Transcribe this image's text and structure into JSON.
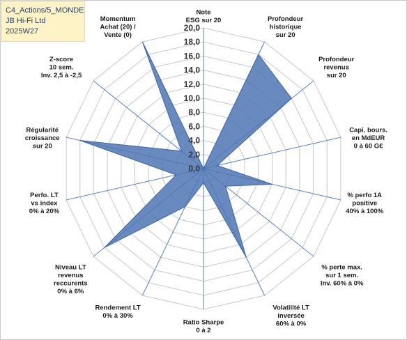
{
  "title_box": {
    "line1": "C4_Actions/5_MONDE",
    "line2": "JB Hi-Fi Ltd",
    "line3": "2025W27"
  },
  "chart_data": {
    "type": "radar",
    "categories": [
      [
        "Note",
        "ESG sur 20"
      ],
      [
        "Profondeur",
        "historique",
        "sur 20"
      ],
      [
        "Profondeur",
        "revenus",
        "sur 20"
      ],
      [
        "Capi. bours.",
        "en MdEUR",
        "0 à 60 G€"
      ],
      [
        "% perfo 1A",
        "positive",
        "40% à 100%"
      ],
      [
        "% perte max.",
        "sur 1 sem.",
        "Inv. 60% à 0%"
      ],
      [
        "Volatilité LT",
        "inversée",
        "60% à 0%"
      ],
      [
        "Ratio Sharpe",
        "0 à 2"
      ],
      [
        "Rendement LT",
        "0% à 30%"
      ],
      [
        "Niveau LT",
        "revenus",
        "reccurents",
        "0% à 6%"
      ],
      [
        "Perfo. LT",
        "vs index",
        "0% à 20%"
      ],
      [
        "Régularité",
        "croissance",
        "sur 20"
      ],
      [
        "Z-score",
        "10 sem.",
        "Inv. 2,5 à -2,5"
      ],
      [
        "Momentum",
        "Achat (20) /",
        "Vente (0)"
      ]
    ],
    "values": [
      0,
      18,
      16,
      2,
      10,
      4,
      14,
      2,
      6,
      18,
      4,
      18,
      4,
      20
    ],
    "ticks": [
      "0,0",
      "2,0",
      "4,0",
      "6,0",
      "8,0",
      "10,0",
      "12,0",
      "14,0",
      "16,0",
      "18,0",
      "20,0"
    ],
    "rlim": [
      0,
      20
    ],
    "grid": true,
    "fill_color": "#4f76b3",
    "line_color": "#3d66aa",
    "grid_color": "#c8c8c8",
    "spoke_color": "#4472c4"
  }
}
